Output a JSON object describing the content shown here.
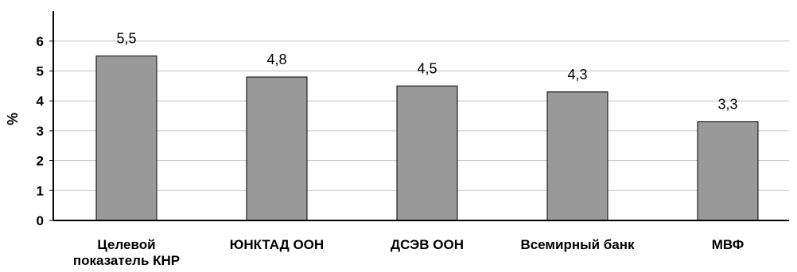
{
  "chart_data": {
    "type": "bar",
    "categories": [
      "Целевой показатель КНР",
      "ЮНКТАД ООН",
      "ДСЭВ ООН",
      "Всемирный банк",
      "МВФ"
    ],
    "category_lines": [
      [
        "Целевой",
        "показатель КНР"
      ],
      [
        "ЮНКТАД ООН"
      ],
      [
        "ДСЭВ ООН"
      ],
      [
        "Всемирный банк"
      ],
      [
        "МВФ"
      ]
    ],
    "values": [
      5.5,
      4.8,
      4.5,
      4.3,
      3.3
    ],
    "value_labels": [
      "5,5",
      "4,8",
      "4,5",
      "4,3",
      "3,3"
    ],
    "yticks": [
      0,
      1,
      2,
      3,
      4,
      5,
      6
    ],
    "ylim": [
      0,
      6.6
    ],
    "ylabel": "%",
    "xlabel": "",
    "title": "",
    "grid": true,
    "legend": "none",
    "colors": {
      "bar_fill": "#999999",
      "bar_stroke": "#000000",
      "grid": "#c0c0c0",
      "axis": "#000000"
    }
  }
}
